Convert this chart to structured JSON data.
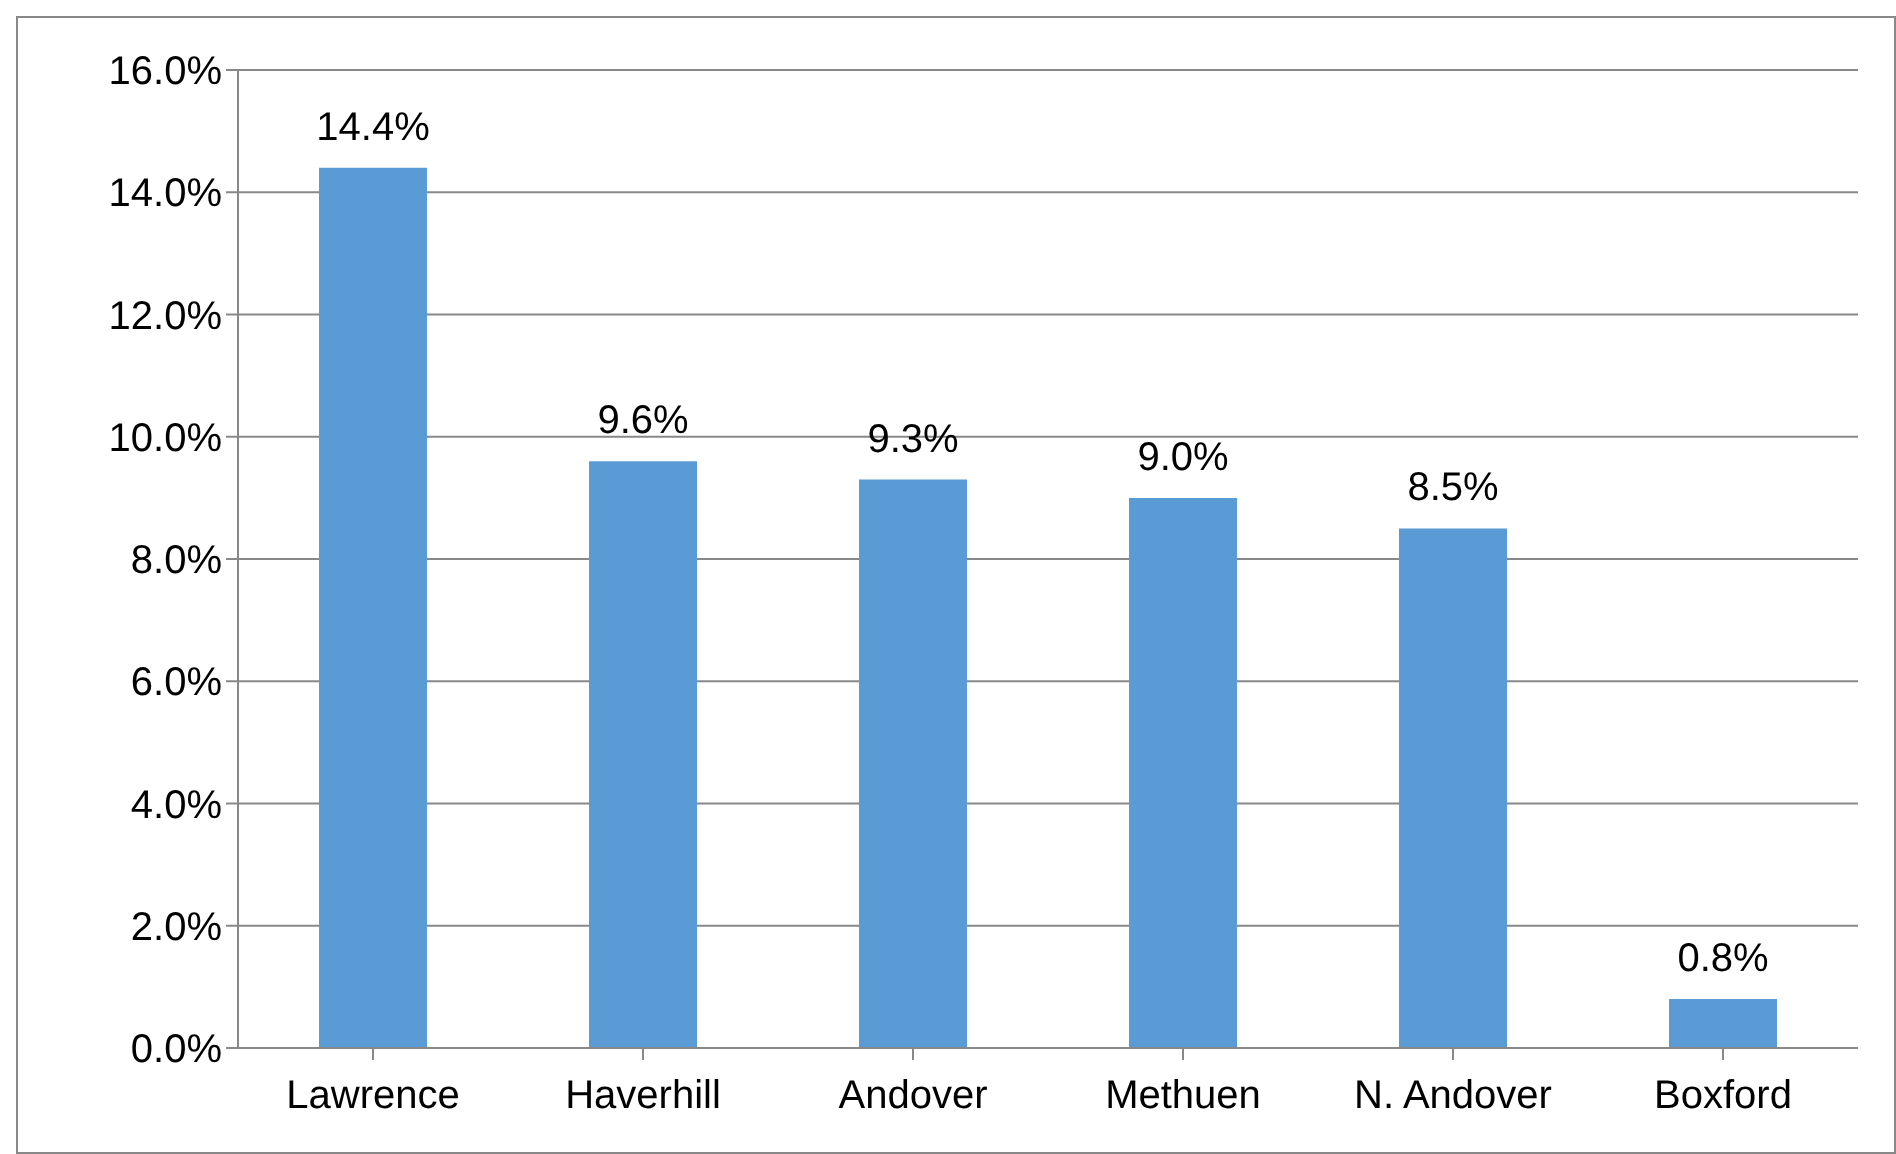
{
  "chart_data": {
    "type": "bar",
    "categories": [
      "Lawrence",
      "Haverhill",
      "Andover",
      "Methuen",
      "N. Andover",
      "Boxford"
    ],
    "values": [
      14.4,
      9.6,
      9.3,
      9.0,
      8.5,
      0.8
    ],
    "value_labels": [
      "14.4%",
      "9.6%",
      "9.3%",
      "9.0%",
      "8.5%",
      "0.8%"
    ],
    "color": "#5b9bd5",
    "ylim": [
      0,
      16
    ],
    "yticks": [
      {
        "value": 0,
        "label": "0.0%"
      },
      {
        "value": 2,
        "label": "2.0%"
      },
      {
        "value": 4,
        "label": "4.0%"
      },
      {
        "value": 6,
        "label": "6.0%"
      },
      {
        "value": 8,
        "label": "8.0%"
      },
      {
        "value": 10,
        "label": "10.0%"
      },
      {
        "value": 12,
        "label": "12.0%"
      },
      {
        "value": 14,
        "label": "14.0%"
      },
      {
        "value": 16,
        "label": "16.0%"
      }
    ],
    "grid": "y"
  }
}
